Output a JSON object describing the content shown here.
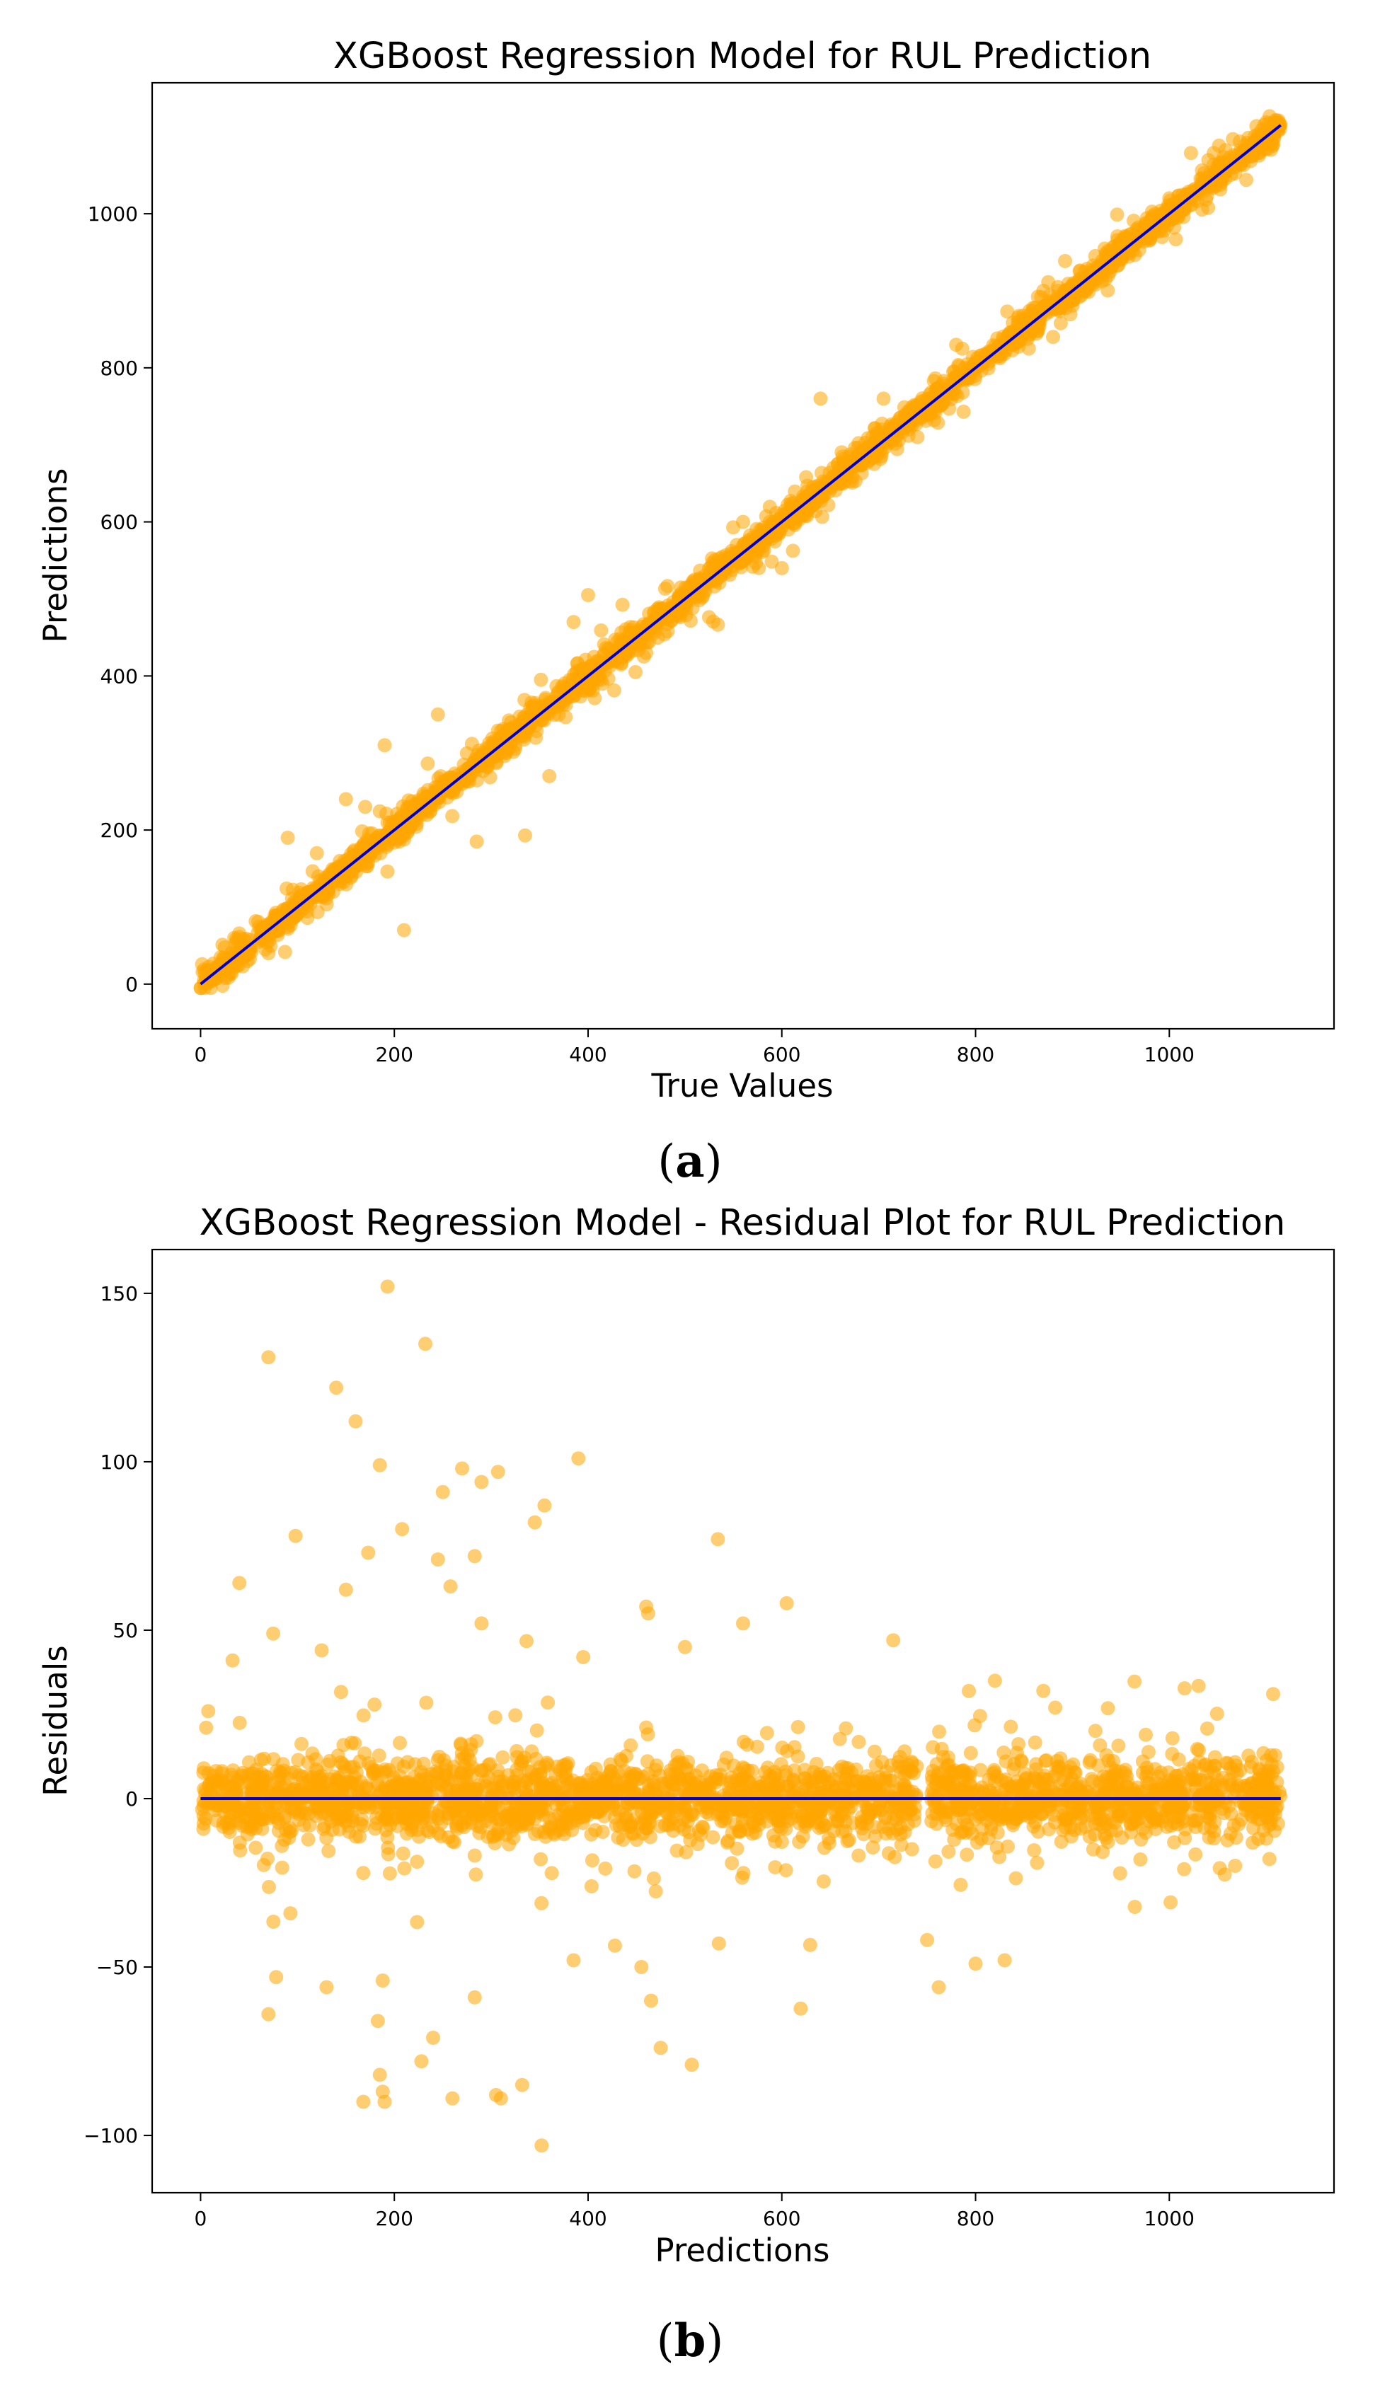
{
  "chart_data": [
    {
      "type": "scatter",
      "title": "XGBoost Regression Model for RUL Prediction",
      "xlabel": "True Values",
      "ylabel": "Predictions",
      "xlim": [
        -50,
        1170
      ],
      "ylim": [
        -58,
        1170
      ],
      "xticks": [
        "0",
        "200",
        "400",
        "600",
        "800",
        "1000"
      ],
      "yticks": [
        "0",
        "200",
        "400",
        "600",
        "800",
        "1000"
      ],
      "panel_label": "a",
      "grid": false,
      "point_color": "#FFA500",
      "point_alpha": 0.55,
      "line_color": "#0000CC",
      "reference_line": {
        "x": [
          0,
          1115
        ],
        "y": [
          0,
          1115
        ]
      },
      "x_range": [
        0,
        1115
      ],
      "n_points": 2600,
      "typical_error_sd": 9,
      "outliers": [
        {
          "x": 190,
          "y": 310
        },
        {
          "x": 245,
          "y": 350
        },
        {
          "x": 335,
          "y": 193
        },
        {
          "x": 360,
          "y": 270
        },
        {
          "x": 415,
          "y": 390
        },
        {
          "x": 285,
          "y": 185
        },
        {
          "x": 170,
          "y": 230
        },
        {
          "x": 90,
          "y": 190
        },
        {
          "x": 210,
          "y": 70
        },
        {
          "x": 120,
          "y": 170
        },
        {
          "x": 560,
          "y": 600
        },
        {
          "x": 600,
          "y": 540
        },
        {
          "x": 740,
          "y": 710
        },
        {
          "x": 640,
          "y": 760
        },
        {
          "x": 385,
          "y": 470
        },
        {
          "x": 400,
          "y": 505
        },
        {
          "x": 705,
          "y": 760
        },
        {
          "x": 510,
          "y": 525
        },
        {
          "x": 780,
          "y": 830
        },
        {
          "x": 325,
          "y": 310
        },
        {
          "x": 150,
          "y": 240
        },
        {
          "x": 70,
          "y": 40
        },
        {
          "x": 460,
          "y": 430
        },
        {
          "x": 870,
          "y": 900
        },
        {
          "x": 950,
          "y": 960
        },
        {
          "x": 880,
          "y": 840
        },
        {
          "x": 1000,
          "y": 1020
        },
        {
          "x": 1085,
          "y": 1075
        }
      ]
    },
    {
      "type": "scatter",
      "title": "XGBoost Regression Model - Residual Plot for RUL Prediction",
      "xlabel": "Predictions",
      "ylabel": "Residuals",
      "xlim": [
        -50,
        1170
      ],
      "ylim": [
        -117,
        163
      ],
      "xticks": [
        "0",
        "200",
        "400",
        "600",
        "800",
        "1000"
      ],
      "yticks": [
        "150",
        "100",
        "50",
        "0",
        "−50",
        "−100"
      ],
      "panel_label": "b",
      "grid": false,
      "point_color": "#FFA500",
      "point_alpha": 0.55,
      "line_color": "#0000CC",
      "reference_line": {
        "x": [
          0,
          1115
        ],
        "y": [
          0,
          0
        ]
      },
      "x_range": [
        0,
        1115
      ],
      "n_points": 2600,
      "typical_error_sd": 6,
      "outliers": [
        {
          "x": 193,
          "y": 152
        },
        {
          "x": 232,
          "y": 135
        },
        {
          "x": 70,
          "y": 131
        },
        {
          "x": 140,
          "y": 122
        },
        {
          "x": 160,
          "y": 112
        },
        {
          "x": 390,
          "y": 101
        },
        {
          "x": 185,
          "y": 99
        },
        {
          "x": 270,
          "y": 98
        },
        {
          "x": 307,
          "y": 97
        },
        {
          "x": 290,
          "y": 94
        },
        {
          "x": 250,
          "y": 91
        },
        {
          "x": 355,
          "y": 87
        },
        {
          "x": 345,
          "y": 82
        },
        {
          "x": 208,
          "y": 80
        },
        {
          "x": 98,
          "y": 78
        },
        {
          "x": 534,
          "y": 77
        },
        {
          "x": 173,
          "y": 73
        },
        {
          "x": 283,
          "y": 72
        },
        {
          "x": 245,
          "y": 71
        },
        {
          "x": 40,
          "y": 64
        },
        {
          "x": 150,
          "y": 62
        },
        {
          "x": 258,
          "y": 63
        },
        {
          "x": 605,
          "y": 58
        },
        {
          "x": 460,
          "y": 57
        },
        {
          "x": 462,
          "y": 55
        },
        {
          "x": 560,
          "y": 52
        },
        {
          "x": 290,
          "y": 52
        },
        {
          "x": 75,
          "y": 49
        },
        {
          "x": 125,
          "y": 44
        },
        {
          "x": 33,
          "y": 41
        },
        {
          "x": 395,
          "y": 42
        },
        {
          "x": 715,
          "y": 47
        },
        {
          "x": 500,
          "y": 45
        },
        {
          "x": 820,
          "y": 35
        },
        {
          "x": 870,
          "y": 32
        },
        {
          "x": 352,
          "y": -103
        },
        {
          "x": 168,
          "y": -90
        },
        {
          "x": 190,
          "y": -90
        },
        {
          "x": 260,
          "y": -89
        },
        {
          "x": 310,
          "y": -89
        },
        {
          "x": 305,
          "y": -88
        },
        {
          "x": 188,
          "y": -87
        },
        {
          "x": 332,
          "y": -85
        },
        {
          "x": 185,
          "y": -82
        },
        {
          "x": 507,
          "y": -79
        },
        {
          "x": 228,
          "y": -78
        },
        {
          "x": 475,
          "y": -74
        },
        {
          "x": 240,
          "y": -71
        },
        {
          "x": 183,
          "y": -66
        },
        {
          "x": 70,
          "y": -64
        },
        {
          "x": 465,
          "y": -60
        },
        {
          "x": 283,
          "y": -59
        },
        {
          "x": 762,
          "y": -56
        },
        {
          "x": 130,
          "y": -56
        },
        {
          "x": 188,
          "y": -54
        },
        {
          "x": 78,
          "y": -53
        },
        {
          "x": 455,
          "y": -50
        },
        {
          "x": 385,
          "y": -48
        },
        {
          "x": 800,
          "y": -49
        },
        {
          "x": 830,
          "y": -48
        },
        {
          "x": 535,
          "y": -43
        },
        {
          "x": 750,
          "y": -42
        }
      ]
    }
  ]
}
